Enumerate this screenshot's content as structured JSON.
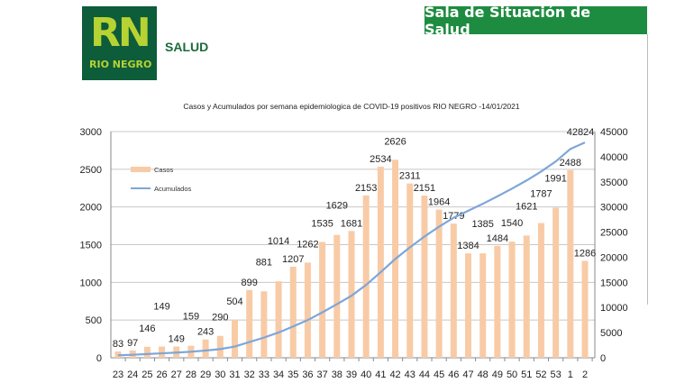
{
  "header": {
    "logo_text": "RN",
    "logo_sub": "RIO NEGRO",
    "section": "SALUD",
    "banner": "Sala de Situación de Salud"
  },
  "colors": {
    "bar": "#f8cba6",
    "line": "#7ea6d8",
    "logo_bg": "#0d5c3a",
    "banner": "#1e8c40"
  },
  "chart_data": {
    "type": "bar",
    "title": "Casos  y Acumulados por semana epidemiologica de COVID-19 positivos RIO NEGRO -14/01/2021",
    "categories": [
      "23",
      "24",
      "25",
      "26",
      "27",
      "28",
      "29",
      "30",
      "31",
      "32",
      "33",
      "34",
      "35",
      "36",
      "37",
      "38",
      "39",
      "40",
      "41",
      "42",
      "43",
      "44",
      "45",
      "46",
      "47",
      "48",
      "49",
      "50",
      "51",
      "52",
      "53",
      "1",
      "2"
    ],
    "series": [
      {
        "name": "Casos",
        "type": "bar",
        "axis": "left",
        "values": [
          83,
          97,
          146,
          149,
          149,
          159,
          243,
          290,
          504,
          899,
          881,
          1014,
          1207,
          1262,
          1535,
          1629,
          1681,
          2153,
          2534,
          2626,
          2311,
          2151,
          1964,
          1779,
          1384,
          1385,
          1484,
          1540,
          1621,
          1787,
          1991,
          2488,
          1286
        ]
      },
      {
        "name": "Acumulados",
        "type": "line",
        "axis": "right",
        "values": [
          495,
          592,
          738,
          887,
          1036,
          1195,
          1438,
          1728,
          2232,
          3131,
          4012,
          5026,
          6233,
          7495,
          9030,
          10659,
          12340,
          14493,
          17027,
          19653,
          21964,
          24115,
          26079,
          27858,
          29242,
          30627,
          32111,
          33651,
          35272,
          37059,
          39050,
          41538,
          42824
        ],
        "end_label": "42824"
      }
    ],
    "ylim": [
      0,
      3000
    ],
    "yticks": [
      "0",
      "500",
      "1000",
      "1500",
      "2000",
      "2500",
      "3000"
    ],
    "y2lim": [
      0,
      45000
    ],
    "y2ticks": [
      "0",
      "5000",
      "10000",
      "15000",
      "20000",
      "25000",
      "30000",
      "35000",
      "40000",
      "45000"
    ],
    "grid": true,
    "legend": "top-left"
  }
}
